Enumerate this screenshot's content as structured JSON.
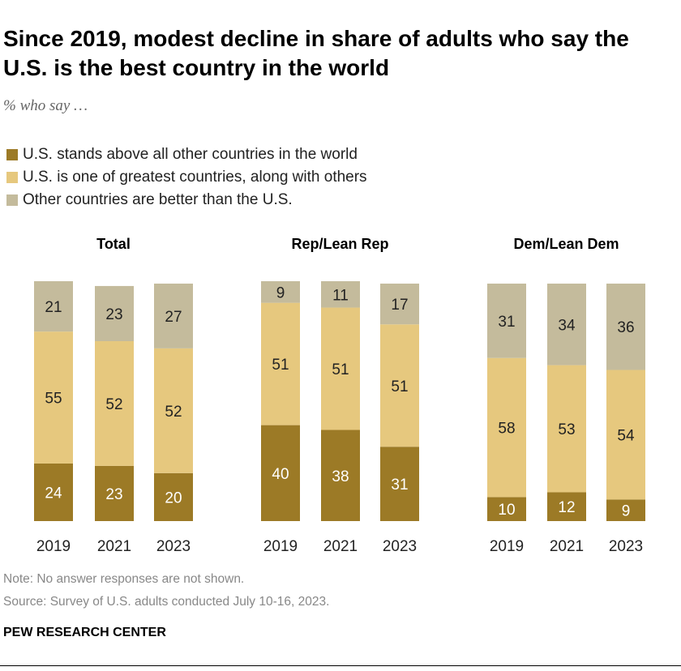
{
  "title": "Since 2019, modest decline in share of adults who say the U.S. is the best country in the world",
  "subtitle": "% who say …",
  "note": "Note: No answer responses are not shown.",
  "source": "Source: Survey of U.S. adults conducted July 10-16, 2023.",
  "brand": "PEW RESEARCH CENTER",
  "chart_data": {
    "type": "bar",
    "stacked": true,
    "legend": [
      {
        "name": "U.S. stands above all other countries in the world",
        "color": "#9c7a26"
      },
      {
        "name": "U.S. is one of greatest countries, along with others",
        "color": "#e6c87e"
      },
      {
        "name": "Other countries are better than the U.S.",
        "color": "#c4bb9c"
      }
    ],
    "panels": [
      {
        "title": "Total",
        "categories": [
          "2019",
          "2021",
          "2023"
        ],
        "values": [
          [
            24,
            55,
            21
          ],
          [
            23,
            52,
            23
          ],
          [
            20,
            52,
            27
          ]
        ]
      },
      {
        "title": "Rep/Lean Rep",
        "categories": [
          "2019",
          "2021",
          "2023"
        ],
        "values": [
          [
            40,
            51,
            9
          ],
          [
            38,
            51,
            11
          ],
          [
            31,
            51,
            17
          ]
        ]
      },
      {
        "title": "Dem/Lean Dem",
        "categories": [
          "2019",
          "2021",
          "2023"
        ],
        "values": [
          [
            10,
            58,
            31
          ],
          [
            12,
            53,
            34
          ],
          [
            9,
            54,
            36
          ]
        ]
      }
    ]
  }
}
